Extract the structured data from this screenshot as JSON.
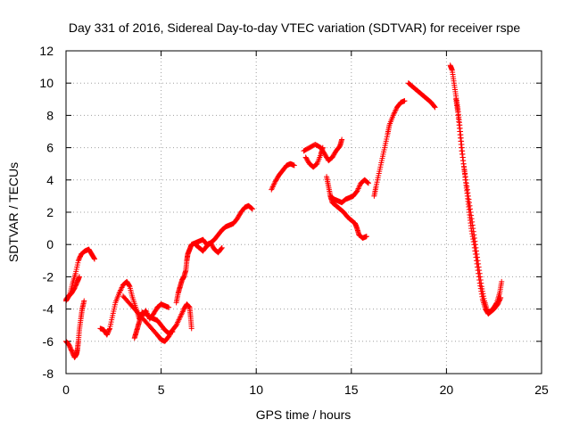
{
  "chart_data": {
    "type": "scatter",
    "title": "Day 331 of 2016, Sidereal Day-to-day VTEC variation (SDTVAR) for receiver rspe",
    "xlabel": "GPS time / hours",
    "ylabel": "SDTVAR / TECUs",
    "xlim": [
      0,
      25
    ],
    "ylim": [
      -8,
      12
    ],
    "xticks": [
      0,
      5,
      10,
      15,
      20,
      25
    ],
    "yticks": [
      -8,
      -6,
      -4,
      -2,
      0,
      2,
      4,
      6,
      8,
      10,
      12
    ],
    "grid": true,
    "legend": "none",
    "marker": "plus",
    "color": "#ff0000",
    "segments": [
      [
        [
          0.0,
          -3.4
        ],
        [
          0.2,
          -3.1
        ],
        [
          0.35,
          -2.4
        ],
        [
          0.5,
          -1.8
        ],
        [
          0.65,
          -1.0
        ],
        [
          0.8,
          -0.6
        ],
        [
          1.0,
          -0.4
        ],
        [
          1.2,
          -0.3
        ],
        [
          1.35,
          -0.6
        ],
        [
          1.5,
          -0.9
        ]
      ],
      [
        [
          0.0,
          -3.5
        ],
        [
          0.15,
          -3.2
        ],
        [
          0.3,
          -3.0
        ],
        [
          0.45,
          -2.7
        ],
        [
          0.6,
          -2.3
        ],
        [
          0.7,
          -2.0
        ]
      ],
      [
        [
          0.0,
          -6.0
        ],
        [
          0.15,
          -6.2
        ],
        [
          0.3,
          -6.6
        ],
        [
          0.45,
          -7.0
        ],
        [
          0.55,
          -6.8
        ],
        [
          0.6,
          -6.5
        ],
        [
          0.65,
          -6.0
        ],
        [
          0.7,
          -5.3
        ],
        [
          0.78,
          -4.6
        ],
        [
          0.85,
          -4.0
        ],
        [
          0.95,
          -3.5
        ]
      ],
      [
        [
          1.8,
          -5.2
        ],
        [
          2.0,
          -5.3
        ],
        [
          2.15,
          -5.6
        ],
        [
          2.3,
          -5.2
        ],
        [
          2.45,
          -4.4
        ],
        [
          2.6,
          -3.6
        ],
        [
          2.8,
          -3.0
        ],
        [
          3.0,
          -2.5
        ],
        [
          3.2,
          -2.3
        ],
        [
          3.35,
          -2.6
        ],
        [
          3.5,
          -3.3
        ],
        [
          3.7,
          -4.0
        ],
        [
          3.85,
          -4.6
        ],
        [
          4.0,
          -4.4
        ],
        [
          4.2,
          -4.1
        ],
        [
          4.4,
          -4.6
        ],
        [
          4.6,
          -4.3
        ],
        [
          4.8,
          -3.9
        ],
        [
          5.0,
          -3.7
        ],
        [
          5.2,
          -3.8
        ],
        [
          5.4,
          -3.9
        ]
      ],
      [
        [
          3.0,
          -3.2
        ],
        [
          3.3,
          -3.6
        ],
        [
          3.6,
          -4.0
        ],
        [
          3.9,
          -4.4
        ],
        [
          4.2,
          -4.8
        ],
        [
          4.5,
          -5.2
        ],
        [
          4.8,
          -5.6
        ],
        [
          5.0,
          -5.9
        ],
        [
          5.2,
          -6.0
        ],
        [
          5.4,
          -5.7
        ],
        [
          5.6,
          -5.3
        ],
        [
          5.8,
          -5.0
        ],
        [
          6.0,
          -4.5
        ],
        [
          6.2,
          -4.0
        ],
        [
          6.35,
          -3.7
        ],
        [
          6.5,
          -3.9
        ],
        [
          6.55,
          -4.5
        ],
        [
          6.6,
          -5.2
        ]
      ],
      [
        [
          3.6,
          -5.8
        ],
        [
          3.7,
          -5.4
        ],
        [
          3.8,
          -5.0
        ],
        [
          3.9,
          -4.6
        ],
        [
          4.0,
          -4.2
        ],
        [
          4.2,
          -4.3
        ],
        [
          4.4,
          -4.5
        ],
        [
          4.6,
          -4.6
        ],
        [
          4.8,
          -4.7
        ],
        [
          5.0,
          -5.0
        ],
        [
          5.2,
          -5.3
        ],
        [
          5.4,
          -5.5
        ],
        [
          5.6,
          -5.4
        ]
      ],
      [
        [
          5.8,
          -3.6
        ],
        [
          5.9,
          -3.0
        ],
        [
          6.0,
          -2.6
        ],
        [
          6.1,
          -2.2
        ],
        [
          6.2,
          -2.0
        ],
        [
          6.3,
          -1.6
        ],
        [
          6.35,
          -1.0
        ],
        [
          6.4,
          -0.6
        ],
        [
          6.5,
          -0.3
        ],
        [
          6.6,
          0.0
        ],
        [
          6.8,
          0.1
        ],
        [
          7.0,
          0.2
        ],
        [
          7.2,
          0.3
        ],
        [
          7.4,
          0.0
        ],
        [
          7.6,
          0.1
        ],
        [
          7.8,
          0.3
        ],
        [
          8.0,
          0.6
        ],
        [
          8.2,
          0.9
        ],
        [
          8.4,
          1.1
        ],
        [
          8.6,
          1.2
        ],
        [
          8.8,
          1.3
        ],
        [
          9.0,
          1.6
        ],
        [
          9.2,
          2.0
        ],
        [
          9.4,
          2.3
        ],
        [
          9.6,
          2.4
        ],
        [
          9.8,
          2.2
        ]
      ],
      [
        [
          6.8,
          0.0
        ],
        [
          7.0,
          -0.2
        ],
        [
          7.2,
          -0.4
        ],
        [
          7.4,
          -0.1
        ],
        [
          7.6,
          0.1
        ],
        [
          7.8,
          -0.3
        ],
        [
          8.0,
          -0.5
        ],
        [
          8.2,
          -0.2
        ]
      ],
      [
        [
          10.8,
          3.4
        ],
        [
          11.0,
          3.9
        ],
        [
          11.2,
          4.3
        ],
        [
          11.4,
          4.6
        ],
        [
          11.6,
          4.9
        ],
        [
          11.8,
          5.0
        ],
        [
          12.0,
          4.9
        ]
      ],
      [
        [
          12.5,
          5.8
        ],
        [
          12.8,
          6.0
        ],
        [
          13.1,
          6.2
        ],
        [
          13.4,
          6.0
        ],
        [
          13.6,
          5.6
        ],
        [
          13.8,
          5.2
        ],
        [
          14.0,
          5.4
        ],
        [
          14.2,
          5.8
        ],
        [
          14.4,
          6.1
        ],
        [
          14.5,
          6.5
        ]
      ],
      [
        [
          12.6,
          5.4
        ],
        [
          12.8,
          5.0
        ],
        [
          13.0,
          4.8
        ],
        [
          13.2,
          5.0
        ],
        [
          13.4,
          5.6
        ],
        [
          13.5,
          6.0
        ]
      ],
      [
        [
          13.7,
          4.2
        ],
        [
          13.8,
          3.6
        ],
        [
          13.9,
          3.0
        ],
        [
          14.0,
          2.6
        ],
        [
          14.2,
          2.4
        ],
        [
          14.4,
          2.2
        ],
        [
          14.6,
          2.0
        ],
        [
          14.8,
          1.7
        ],
        [
          15.0,
          1.5
        ],
        [
          15.2,
          1.3
        ],
        [
          15.3,
          1.0
        ],
        [
          15.4,
          0.6
        ],
        [
          15.6,
          0.4
        ],
        [
          15.8,
          0.5
        ]
      ],
      [
        [
          13.9,
          3.0
        ],
        [
          14.1,
          2.8
        ],
        [
          14.3,
          2.7
        ],
        [
          14.5,
          2.6
        ],
        [
          14.7,
          2.8
        ],
        [
          14.9,
          2.9
        ],
        [
          15.1,
          3.0
        ],
        [
          15.3,
          3.3
        ],
        [
          15.5,
          3.8
        ],
        [
          15.7,
          4.0
        ],
        [
          15.9,
          3.8
        ]
      ],
      [
        [
          16.2,
          3.0
        ],
        [
          16.3,
          3.6
        ],
        [
          16.45,
          4.4
        ],
        [
          16.6,
          5.2
        ],
        [
          16.75,
          6.0
        ],
        [
          16.9,
          6.8
        ],
        [
          17.0,
          7.4
        ],
        [
          17.2,
          8.0
        ],
        [
          17.4,
          8.5
        ],
        [
          17.6,
          8.8
        ],
        [
          17.8,
          8.9
        ]
      ],
      [
        [
          18.0,
          10.0
        ],
        [
          18.2,
          9.8
        ],
        [
          18.4,
          9.6
        ],
        [
          18.6,
          9.4
        ],
        [
          18.8,
          9.2
        ],
        [
          19.0,
          9.0
        ],
        [
          19.2,
          8.8
        ],
        [
          19.4,
          8.5
        ]
      ],
      [
        [
          20.2,
          11.1
        ],
        [
          20.3,
          10.8
        ],
        [
          20.4,
          10.0
        ],
        [
          20.5,
          9.2
        ],
        [
          20.6,
          8.4
        ],
        [
          20.7,
          7.4
        ],
        [
          20.8,
          6.2
        ],
        [
          20.9,
          5.0
        ],
        [
          21.0,
          4.0
        ],
        [
          21.1,
          3.0
        ],
        [
          21.2,
          2.0
        ],
        [
          21.3,
          1.0
        ],
        [
          21.45,
          0.0
        ],
        [
          21.6,
          -1.2
        ],
        [
          21.75,
          -2.4
        ],
        [
          21.9,
          -3.4
        ],
        [
          22.05,
          -4.0
        ],
        [
          22.2,
          -4.3
        ],
        [
          22.35,
          -4.1
        ],
        [
          22.5,
          -3.9
        ],
        [
          22.65,
          -3.6
        ],
        [
          22.8,
          -3.0
        ],
        [
          22.9,
          -2.3
        ]
      ],
      [
        [
          20.5,
          9.0
        ],
        [
          20.6,
          8.2
        ],
        [
          20.7,
          7.0
        ],
        [
          20.8,
          5.8
        ],
        [
          20.95,
          4.6
        ],
        [
          21.1,
          3.4
        ],
        [
          21.25,
          2.2
        ],
        [
          21.4,
          1.0
        ],
        [
          21.55,
          -0.2
        ],
        [
          21.7,
          -1.4
        ],
        [
          21.85,
          -2.6
        ],
        [
          22.0,
          -3.5
        ],
        [
          22.15,
          -4.1
        ],
        [
          22.3,
          -4.2
        ],
        [
          22.5,
          -4.0
        ],
        [
          22.7,
          -3.7
        ],
        [
          22.85,
          -3.3
        ]
      ]
    ]
  }
}
